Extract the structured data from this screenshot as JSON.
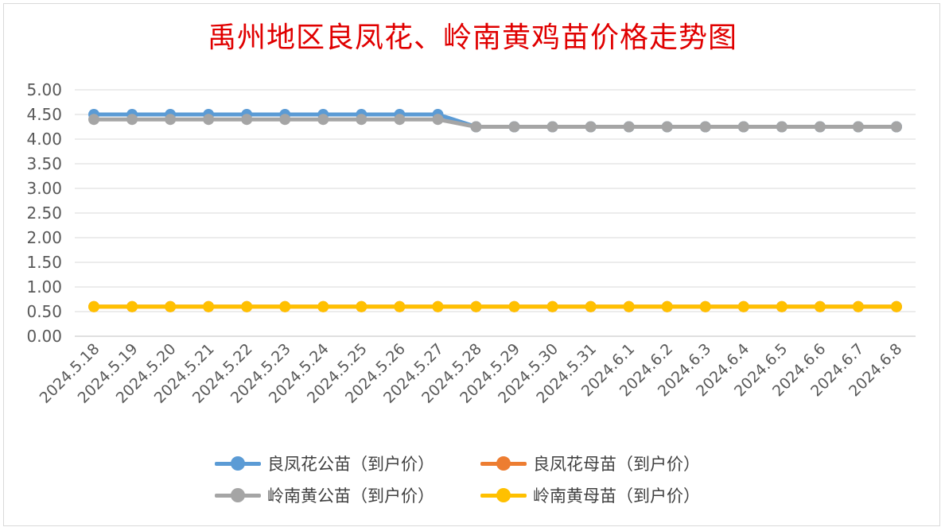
{
  "chart_data": {
    "type": "line",
    "title": "禹州地区良凤花、岭南黄鸡苗价格走势图",
    "categories": [
      "2024.5.18",
      "2024.5.19",
      "2024.5.20",
      "2024.5.21",
      "2024.5.22",
      "2024.5.23",
      "2024.5.24",
      "2024.5.25",
      "2024.5.26",
      "2024.5.27",
      "2024.5.28",
      "2024.5.29",
      "2024.5.30",
      "2024.5.31",
      "2024.6.1",
      "2024.6.2",
      "2024.6.3",
      "2024.6.4",
      "2024.6.5",
      "2024.6.6",
      "2024.6.7",
      "2024.6.8"
    ],
    "ylim": [
      0,
      5
    ],
    "yticks": [
      "0.00",
      "0.50",
      "1.00",
      "1.50",
      "2.00",
      "2.50",
      "3.00",
      "3.50",
      "4.00",
      "4.50",
      "5.00"
    ],
    "grid": true,
    "legend_position": "bottom",
    "series": [
      {
        "name": "良凤花公苗（到户价）",
        "color": "#5b9bd5",
        "values": [
          4.5,
          4.5,
          4.5,
          4.5,
          4.5,
          4.5,
          4.5,
          4.5,
          4.5,
          4.5,
          4.25,
          4.25,
          4.25,
          4.25,
          4.25,
          4.25,
          4.25,
          4.25,
          4.25,
          4.25,
          4.25,
          4.25
        ]
      },
      {
        "name": "良凤花母苗（到户价）",
        "color": "#ed7d31",
        "values": [
          0.6,
          0.6,
          0.6,
          0.6,
          0.6,
          0.6,
          0.6,
          0.6,
          0.6,
          0.6,
          0.6,
          0.6,
          0.6,
          0.6,
          0.6,
          0.6,
          0.6,
          0.6,
          0.6,
          0.6,
          0.6,
          0.6
        ]
      },
      {
        "name": "岭南黄公苗（到户价）",
        "color": "#a5a5a5",
        "values": [
          4.4,
          4.4,
          4.4,
          4.4,
          4.4,
          4.4,
          4.4,
          4.4,
          4.4,
          4.4,
          4.25,
          4.25,
          4.25,
          4.25,
          4.25,
          4.25,
          4.25,
          4.25,
          4.25,
          4.25,
          4.25,
          4.25
        ]
      },
      {
        "name": "岭南黄母苗（到户价）",
        "color": "#ffc000",
        "values": [
          0.6,
          0.6,
          0.6,
          0.6,
          0.6,
          0.6,
          0.6,
          0.6,
          0.6,
          0.6,
          0.6,
          0.6,
          0.6,
          0.6,
          0.6,
          0.6,
          0.6,
          0.6,
          0.6,
          0.6,
          0.6,
          0.6
        ]
      }
    ]
  }
}
